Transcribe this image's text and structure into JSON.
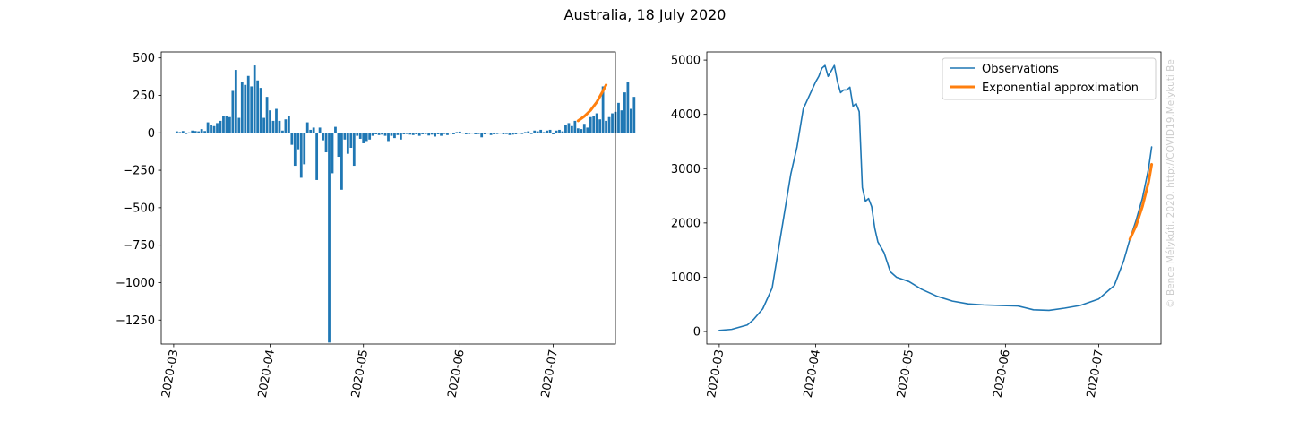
{
  "title": "Australia, 18 July 2020",
  "watermark": "© Bence Mélykúti, 2020. http://COVID19.Melykuti.Be",
  "colors": {
    "bar": "#1f77b4",
    "observations": "#1f77b4",
    "exponential": "#ff7f0e",
    "watermark": "#cccccc"
  },
  "chart_data": [
    {
      "type": "bar",
      "xlabel": "",
      "ylabel": "",
      "ylim": [
        -1410,
        540
      ],
      "yticks": [
        500,
        250,
        0,
        -250,
        -500,
        -750,
        -1000,
        -1250
      ],
      "ytick_labels": [
        "500",
        "250",
        "0",
        "−250",
        "−500",
        "−750",
        "−1000",
        "−1250"
      ],
      "xticks": [
        "2020-03-01",
        "2020-04-01",
        "2020-05-01",
        "2020-06-01",
        "2020-07-01"
      ],
      "xtick_labels": [
        "2020-03",
        "2020-04",
        "2020-05",
        "2020-06",
        "2020-07"
      ],
      "xlim": [
        "2020-02-26",
        "2020-07-21"
      ],
      "start_date": "2020-03-02",
      "values": [
        10,
        5,
        12,
        -8,
        3,
        15,
        12,
        10,
        25,
        12,
        70,
        50,
        45,
        65,
        80,
        115,
        110,
        105,
        280,
        420,
        100,
        340,
        320,
        380,
        310,
        450,
        350,
        300,
        100,
        240,
        150,
        80,
        160,
        80,
        15,
        90,
        110,
        -80,
        -220,
        -110,
        -300,
        -210,
        70,
        20,
        35,
        -315,
        35,
        -50,
        -130,
        -1400,
        -270,
        40,
        -160,
        -380,
        -45,
        -140,
        -100,
        -220,
        -20,
        -40,
        -70,
        -55,
        -45,
        -20,
        -10,
        -15,
        -12,
        -20,
        -55,
        -20,
        -35,
        -15,
        -45,
        -10,
        -8,
        -12,
        -15,
        -10,
        -20,
        -10,
        -8,
        -18,
        -12,
        -25,
        -10,
        -20,
        -8,
        -15,
        -5,
        -10,
        5,
        8,
        -5,
        -10,
        -8,
        -5,
        -10,
        -8,
        -30,
        -10,
        -5,
        -15,
        -10,
        -8,
        -5,
        -10,
        -8,
        -15,
        -12,
        -10,
        -5,
        -8,
        5,
        10,
        -8,
        15,
        10,
        20,
        5,
        15,
        20,
        -10,
        15,
        20,
        10,
        55,
        65,
        45,
        80,
        30,
        25,
        60,
        35,
        105,
        110,
        130,
        90,
        310,
        80,
        105,
        130,
        140,
        200,
        150,
        270,
        340,
        160,
        240
      ],
      "fit": {
        "name": "",
        "x": [
          "2020-07-09",
          "2020-07-11",
          "2020-07-13",
          "2020-07-15",
          "2020-07-17",
          "2020-07-18"
        ],
        "y": [
          80,
          110,
          150,
          205,
          280,
          320
        ]
      }
    },
    {
      "type": "line",
      "xlabel": "",
      "ylabel": "",
      "ylim": [
        -230,
        5150
      ],
      "yticks": [
        0,
        1000,
        2000,
        3000,
        4000,
        5000
      ],
      "ytick_labels": [
        "0",
        "1000",
        "2000",
        "3000",
        "4000",
        "5000"
      ],
      "xticks": [
        "2020-03-01",
        "2020-04-01",
        "2020-05-01",
        "2020-06-01",
        "2020-07-01"
      ],
      "xtick_labels": [
        "2020-03",
        "2020-04",
        "2020-05",
        "2020-06",
        "2020-07"
      ],
      "xlim": [
        "2020-02-26",
        "2020-07-21"
      ],
      "legend": {
        "position": "top-right",
        "entries": [
          "Observations",
          "Exponential approximation"
        ]
      },
      "series": [
        {
          "name": "Observations",
          "x": [
            "2020-03-01",
            "2020-03-05",
            "2020-03-10",
            "2020-03-12",
            "2020-03-15",
            "2020-03-18",
            "2020-03-20",
            "2020-03-22",
            "2020-03-24",
            "2020-03-26",
            "2020-03-28",
            "2020-03-30",
            "2020-04-01",
            "2020-04-02",
            "2020-04-03",
            "2020-04-04",
            "2020-04-05",
            "2020-04-07",
            "2020-04-08",
            "2020-04-09",
            "2020-04-10",
            "2020-04-11",
            "2020-04-12",
            "2020-04-13",
            "2020-04-14",
            "2020-04-15",
            "2020-04-16",
            "2020-04-17",
            "2020-04-18",
            "2020-04-19",
            "2020-04-20",
            "2020-04-21",
            "2020-04-23",
            "2020-04-25",
            "2020-04-27",
            "2020-05-01",
            "2020-05-05",
            "2020-05-10",
            "2020-05-15",
            "2020-05-20",
            "2020-05-25",
            "2020-05-30",
            "2020-06-05",
            "2020-06-10",
            "2020-06-15",
            "2020-06-20",
            "2020-06-25",
            "2020-07-01",
            "2020-07-03",
            "2020-07-06",
            "2020-07-09",
            "2020-07-11",
            "2020-07-13",
            "2020-07-15",
            "2020-07-17",
            "2020-07-18"
          ],
          "y": [
            20,
            40,
            120,
            220,
            420,
            800,
            1500,
            2200,
            2900,
            3400,
            4100,
            4350,
            4600,
            4700,
            4850,
            4900,
            4700,
            4900,
            4600,
            4400,
            4450,
            4450,
            4500,
            4150,
            4200,
            4050,
            2650,
            2400,
            2450,
            2300,
            1900,
            1650,
            1450,
            1100,
            1000,
            920,
            780,
            650,
            560,
            510,
            490,
            480,
            470,
            400,
            390,
            430,
            480,
            600,
            700,
            850,
            1300,
            1700,
            2050,
            2450,
            3000,
            3400
          ]
        },
        {
          "name": "Exponential approximation",
          "x": [
            "2020-07-11",
            "2020-07-13",
            "2020-07-15",
            "2020-07-17",
            "2020-07-18"
          ],
          "y": [
            1700,
            1950,
            2300,
            2750,
            3080
          ]
        }
      ]
    }
  ]
}
